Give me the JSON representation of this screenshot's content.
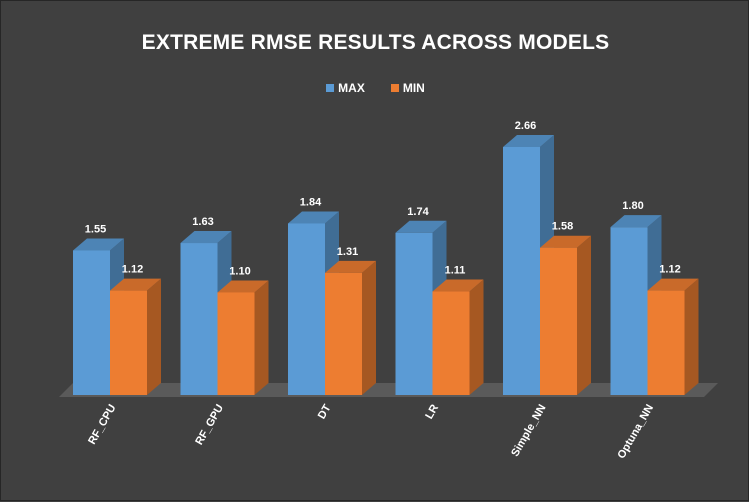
{
  "chart_data": {
    "type": "bar",
    "title": "EXTREME RMSE RESULTS ACROSS MODELS",
    "categories": [
      "RF_CPU",
      "RF_GPU",
      "DT",
      "LR",
      "Simple_NN",
      "Optuna_NN"
    ],
    "series": [
      {
        "name": "MAX",
        "values": [
          1.55,
          1.63,
          1.84,
          1.74,
          2.66,
          1.8
        ],
        "labels": [
          "1.55",
          "1.63",
          "1.84",
          "1.74",
          "2.66",
          "1.80"
        ]
      },
      {
        "name": "MIN",
        "values": [
          1.12,
          1.1,
          1.31,
          1.11,
          1.58,
          1.12
        ],
        "labels": [
          "1.12",
          "1.10",
          "1.31",
          "1.11",
          "1.58",
          "1.12"
        ]
      }
    ],
    "ylim": [
      0,
      2.66
    ],
    "grid": false,
    "legend_position": "top-center",
    "colors": {
      "MAX": "#5b9bd5",
      "MIN": "#ed7d31",
      "background": "#404040",
      "text": "#ffffff"
    }
  }
}
